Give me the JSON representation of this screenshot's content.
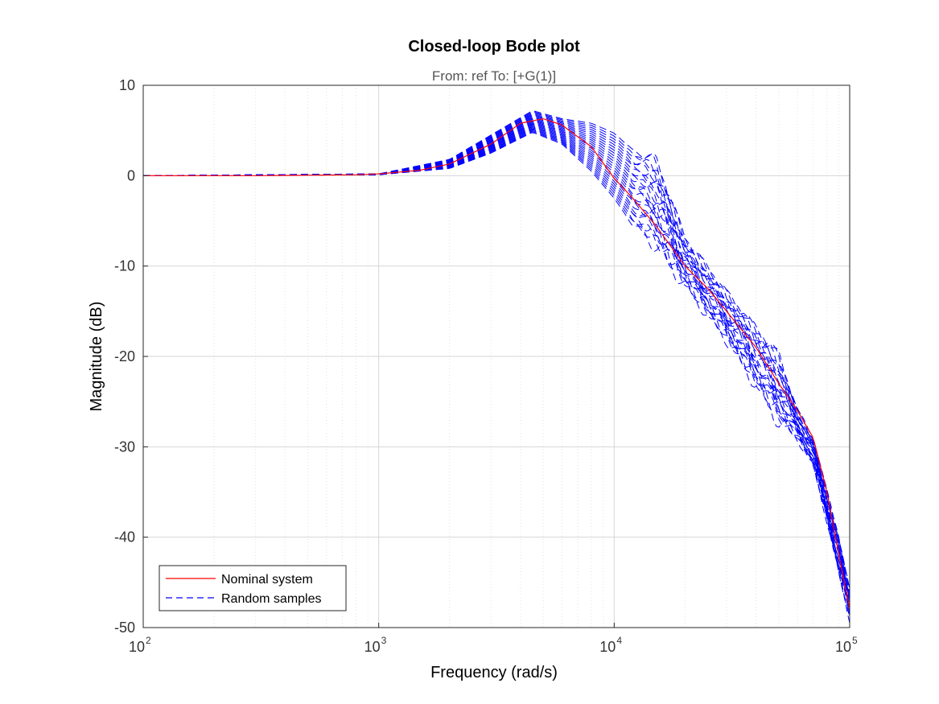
{
  "chart_data": {
    "type": "line",
    "title": "Closed-loop Bode plot",
    "subtitle": "From: ref  To: [+G(1)]",
    "xlabel": "Frequency  (rad/s)",
    "ylabel": "Magnitude (dB)",
    "xscale": "log",
    "xlim": [
      100,
      100000
    ],
    "ylim": [
      -50,
      10
    ],
    "x_ticks": [
      {
        "base": "10",
        "exp": "2"
      },
      {
        "base": "10",
        "exp": "3"
      },
      {
        "base": "10",
        "exp": "4"
      },
      {
        "base": "10",
        "exp": "5"
      }
    ],
    "y_ticks": [
      "10",
      "0",
      "-10",
      "-20",
      "-30",
      "-40",
      "-50"
    ],
    "grid": true,
    "legend_position": "bottom-left",
    "series": [
      {
        "name": "Nominal system",
        "color": "#ff0000",
        "style": "solid",
        "x": [
          100,
          300,
          800,
          1000,
          1500,
          2000,
          3000,
          4000,
          5000,
          6000,
          8000,
          10000,
          12000,
          15000,
          20000,
          25000,
          30000,
          40000,
          50000,
          60000,
          70000,
          80000,
          90000,
          100000
        ],
        "y": [
          0,
          0,
          0.1,
          0.2,
          0.6,
          1.3,
          3.5,
          5.8,
          6.3,
          5.6,
          3.2,
          -0.3,
          -2.5,
          -5.5,
          -10,
          -12.5,
          -15,
          -19,
          -23,
          -26,
          -29,
          -35,
          -42,
          -48
        ]
      },
      {
        "name": "Random samples",
        "color": "#0000ff",
        "style": "dashed",
        "envelope_upper": {
          "x": [
            100,
            1000,
            2000,
            3000,
            4500,
            6000,
            8000,
            10000,
            12000,
            15000,
            20000,
            30000,
            40000,
            50000,
            60000,
            70000,
            80000,
            90000,
            100000
          ],
          "y": [
            0,
            0.2,
            1.8,
            4.5,
            7.2,
            6.3,
            5.8,
            4.7,
            2.8,
            1.8,
            -7,
            -13,
            -17,
            -20,
            -26,
            -29,
            -35,
            -40,
            -46
          ]
        },
        "envelope_lower": {
          "x": [
            100,
            1000,
            2000,
            3000,
            4500,
            6000,
            8000,
            10000,
            12000,
            15000,
            20000,
            30000,
            40000,
            50000,
            60000,
            70000,
            80000,
            90000,
            100000
          ],
          "y": [
            0,
            0.1,
            0.8,
            2.5,
            4.8,
            3.5,
            0.5,
            -2.5,
            -5.5,
            -7.5,
            -12,
            -18,
            -23,
            -27,
            -29,
            -32,
            -38,
            -44,
            -49
          ]
        }
      }
    ]
  }
}
